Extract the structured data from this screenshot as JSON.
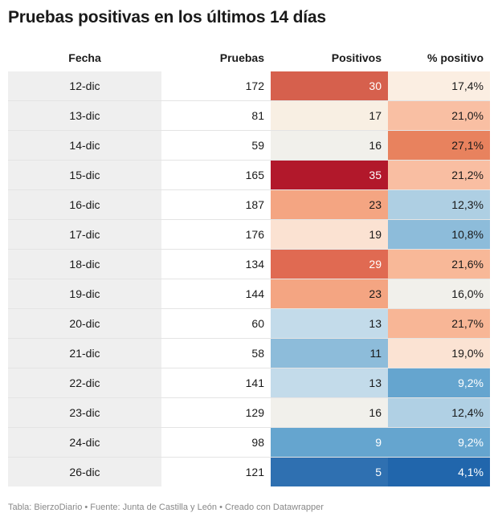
{
  "title": "Pruebas positivas en los últimos 14 días",
  "footer": "Tabla: BierzoDiario • Fuente: Junta de Castilla y León • Creado con Datawrapper",
  "chart_data": {
    "type": "table",
    "columns": [
      "Fecha",
      "Pruebas",
      "Positivos",
      "% positivo"
    ],
    "rows": [
      {
        "fecha": "12-dic",
        "pruebas": "172",
        "positivos": "30",
        "pct": "17,4%",
        "pos_color": "#d6604d",
        "pct_color": "#fbeee2"
      },
      {
        "fecha": "13-dic",
        "pruebas": "81",
        "positivos": "17",
        "pct": "21,0%",
        "pos_color": "#f8efe3",
        "pct_color": "#f9bfa3"
      },
      {
        "fecha": "14-dic",
        "pruebas": "59",
        "positivos": "16",
        "pct": "27,1%",
        "pos_color": "#f1f0eb",
        "pct_color": "#e8825e"
      },
      {
        "fecha": "15-dic",
        "pruebas": "165",
        "positivos": "35",
        "pct": "21,2%",
        "pos_color": "#b2182b",
        "pct_color": "#f9bea2"
      },
      {
        "fecha": "16-dic",
        "pruebas": "187",
        "positivos": "23",
        "pct": "12,3%",
        "pos_color": "#f4a582",
        "pct_color": "#aecfe3"
      },
      {
        "fecha": "17-dic",
        "pruebas": "176",
        "positivos": "19",
        "pct": "10,8%",
        "pos_color": "#fbe2d2",
        "pct_color": "#8dbcda"
      },
      {
        "fecha": "18-dic",
        "pruebas": "134",
        "positivos": "29",
        "pct": "21,6%",
        "pos_color": "#e06a52",
        "pct_color": "#f8b898"
      },
      {
        "fecha": "19-dic",
        "pruebas": "144",
        "positivos": "23",
        "pct": "16,0%",
        "pos_color": "#f4a582",
        "pct_color": "#f1f0eb"
      },
      {
        "fecha": "20-dic",
        "pruebas": "60",
        "positivos": "13",
        "pct": "21,7%",
        "pos_color": "#c3dbea",
        "pct_color": "#f8b696"
      },
      {
        "fecha": "21-dic",
        "pruebas": "58",
        "positivos": "11",
        "pct": "19,0%",
        "pos_color": "#8dbcda",
        "pct_color": "#fbe3d3"
      },
      {
        "fecha": "22-dic",
        "pruebas": "141",
        "positivos": "13",
        "pct": "9,2%",
        "pos_color": "#c3dbea",
        "pct_color": "#65a5cf"
      },
      {
        "fecha": "23-dic",
        "pruebas": "129",
        "positivos": "16",
        "pct": "12,4%",
        "pos_color": "#f1f0eb",
        "pct_color": "#b0d0e4"
      },
      {
        "fecha": "24-dic",
        "pruebas": "98",
        "positivos": "9",
        "pct": "9,2%",
        "pos_color": "#65a5cf",
        "pct_color": "#65a5cf"
      },
      {
        "fecha": "26-dic",
        "pruebas": "121",
        "positivos": "5",
        "pct": "4,1%",
        "pos_color": "#2f70b1",
        "pct_color": "#2166ac"
      }
    ]
  }
}
